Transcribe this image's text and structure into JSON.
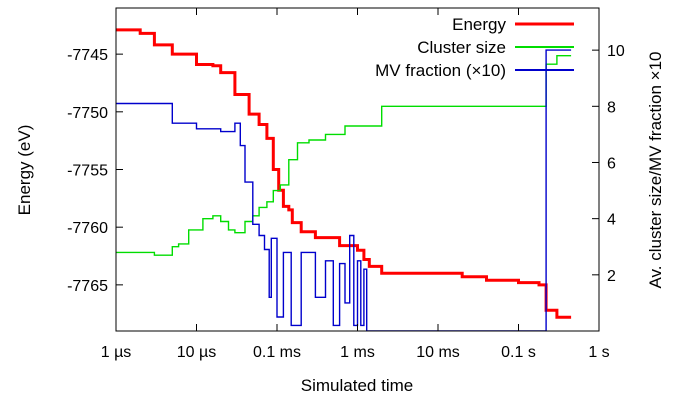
{
  "chart_data": {
    "type": "line",
    "title": "",
    "xlabel": "Simulated time",
    "ylabel": "Energy (eV)",
    "y2label": "Av. cluster size/MV fraction ×10",
    "x_scale": "log",
    "x_unit": "s",
    "xlim": [
      1e-06,
      1
    ],
    "ylim": [
      -7769,
      -7741
    ],
    "y2lim": [
      0,
      11.5
    ],
    "x_tick_values": [
      1e-06,
      1e-05,
      0.0001,
      0.001,
      0.01,
      0.1,
      1
    ],
    "x_tick_labels": [
      "1 µs",
      "10 µs",
      "0.1 ms",
      "1 ms",
      "10 ms",
      "0.1 s",
      "1 s"
    ],
    "y_ticks": [
      -7745,
      -7750,
      -7755,
      -7760,
      -7765
    ],
    "y2_ticks": [
      2,
      4,
      6,
      8,
      10
    ],
    "grid": false,
    "legend_position": "top-right",
    "series": [
      {
        "name": "Energy",
        "axis": "left",
        "color": "#ff0000",
        "points": [
          [
            1e-06,
            -7742.9
          ],
          [
            2e-06,
            -7743.2
          ],
          [
            3e-06,
            -7744.2
          ],
          [
            5e-06,
            -7745.0
          ],
          [
            1e-05,
            -7745.9
          ],
          [
            1.6e-05,
            -7746.0
          ],
          [
            2e-05,
            -7746.6
          ],
          [
            3e-05,
            -7748.5
          ],
          [
            4.5e-05,
            -7750.2
          ],
          [
            6e-05,
            -7751.1
          ],
          [
            7.5e-05,
            -7752.3
          ],
          [
            9e-05,
            -7755.0
          ],
          [
            0.000105,
            -7756.8
          ],
          [
            0.00012,
            -7758.2
          ],
          [
            0.00014,
            -7758.5
          ],
          [
            0.000155,
            -7759.6
          ],
          [
            0.0002,
            -7760.4
          ],
          [
            0.0003,
            -7760.9
          ],
          [
            0.0006,
            -7761.6
          ],
          [
            0.001,
            -7762.0
          ],
          [
            0.0012,
            -7762.8
          ],
          [
            0.0014,
            -7763.4
          ],
          [
            0.002,
            -7764.0
          ],
          [
            0.01,
            -7764.0
          ],
          [
            0.02,
            -7764.3
          ],
          [
            0.04,
            -7764.6
          ],
          [
            0.1,
            -7764.8
          ],
          [
            0.18,
            -7765.0
          ],
          [
            0.21,
            -7765.0
          ],
          [
            0.22,
            -7767.2
          ],
          [
            0.3,
            -7767.8
          ],
          [
            0.45,
            -7767.8
          ]
        ]
      },
      {
        "name": "Cluster size",
        "axis": "right",
        "color": "#00dd00",
        "points": [
          [
            1e-06,
            2.8
          ],
          [
            2e-06,
            2.8
          ],
          [
            3e-06,
            2.7
          ],
          [
            5e-06,
            3.0
          ],
          [
            6e-06,
            3.1
          ],
          [
            8e-06,
            3.6
          ],
          [
            1.2e-05,
            4.0
          ],
          [
            1.6e-05,
            4.1
          ],
          [
            2e-05,
            3.9
          ],
          [
            2.5e-05,
            3.6
          ],
          [
            3e-05,
            3.5
          ],
          [
            4e-05,
            3.9
          ],
          [
            5e-05,
            4.1
          ],
          [
            6e-05,
            4.4
          ],
          [
            7.5e-05,
            4.6
          ],
          [
            9e-05,
            5.0
          ],
          [
            0.00011,
            5.2
          ],
          [
            0.00014,
            6.1
          ],
          [
            0.00018,
            6.7
          ],
          [
            0.00025,
            6.8
          ],
          [
            0.0004,
            7.0
          ],
          [
            0.0007,
            7.3
          ],
          [
            0.001,
            7.3
          ],
          [
            0.0015,
            7.3
          ],
          [
            0.002,
            8.0
          ],
          [
            0.025,
            8.0
          ],
          [
            0.2,
            8.0
          ],
          [
            0.21,
            8.0
          ],
          [
            0.22,
            9.5
          ],
          [
            0.3,
            9.8
          ],
          [
            0.45,
            9.8
          ]
        ]
      },
      {
        "name": "MV fraction (×10)",
        "axis": "right",
        "color": "#0000cc",
        "points": [
          [
            1e-06,
            8.1
          ],
          [
            3e-06,
            8.1
          ],
          [
            5e-06,
            7.4
          ],
          [
            1e-05,
            7.2
          ],
          [
            2e-05,
            7.1
          ],
          [
            3e-05,
            7.4
          ],
          [
            3.5e-05,
            6.6
          ],
          [
            4e-05,
            5.3
          ],
          [
            5e-05,
            3.8
          ],
          [
            6e-05,
            3.4
          ],
          [
            7e-05,
            2.9
          ],
          [
            8e-05,
            1.2
          ],
          [
            8.5e-05,
            3.3
          ],
          [
            0.0001,
            0.5
          ],
          [
            0.00012,
            2.8
          ],
          [
            0.00015,
            0.2
          ],
          [
            0.0002,
            2.8
          ],
          [
            0.0003,
            1.2
          ],
          [
            0.0004,
            2.5
          ],
          [
            0.0005,
            0.2
          ],
          [
            0.0006,
            2.4
          ],
          [
            0.0007,
            1.0
          ],
          [
            0.0008,
            3.4
          ],
          [
            0.0009,
            0.2
          ],
          [
            0.001,
            2.5
          ],
          [
            0.0011,
            0.2
          ],
          [
            0.0012,
            2.2
          ],
          [
            0.0013,
            0.0
          ],
          [
            0.002,
            0.0
          ],
          [
            0.005,
            0.0
          ],
          [
            0.2,
            0.0
          ],
          [
            0.21,
            0.0
          ],
          [
            0.22,
            10.0
          ],
          [
            0.45,
            10.0
          ]
        ]
      }
    ]
  }
}
